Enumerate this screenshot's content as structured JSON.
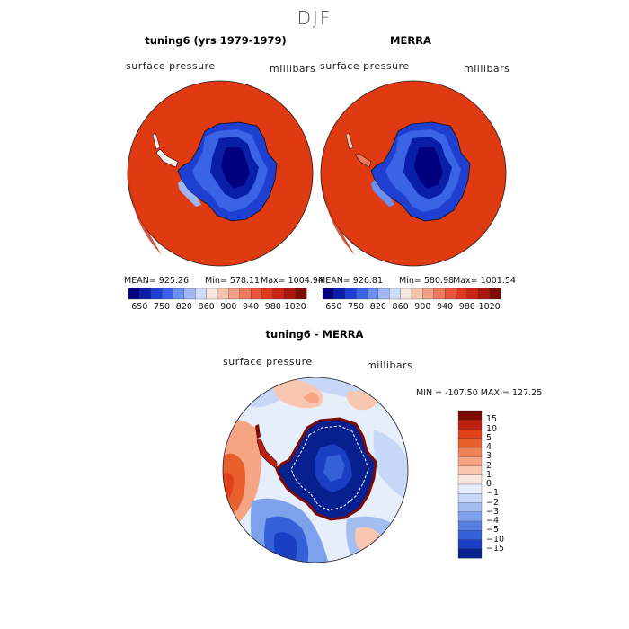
{
  "season": "DJF",
  "panels": [
    {
      "title": "tuning6 (yrs 1979-1979)",
      "variable": "surface pressure",
      "units": "millibars",
      "stats": {
        "mean": "MEAN= 925.26",
        "min": "Min= 578.11",
        "max": "Max= 1004.94"
      }
    },
    {
      "title": "MERRA",
      "variable": "surface pressure",
      "units": "millibars",
      "stats": {
        "mean": "MEAN= 926.81",
        "min": "Min= 580.98",
        "max": "Max= 1001.54"
      }
    }
  ],
  "pressure_colorbar": {
    "tick_labels": [
      "650",
      "750",
      "820",
      "860",
      "900",
      "940",
      "980",
      "1020"
    ],
    "colors": [
      "#00007f",
      "#0a1fa8",
      "#1f3fd0",
      "#3a63e6",
      "#6a8fef",
      "#9fb8f4",
      "#cfdcf8",
      "#f7e6df",
      "#f6c4ae",
      "#f2a085",
      "#ee7a5c",
      "#e8563a",
      "#dd3a1f",
      "#c82612",
      "#a7170a",
      "#7e0a04"
    ]
  },
  "difference_panel": {
    "title": "tuning6 - MERRA",
    "variable": "surface pressure",
    "units": "millibars",
    "stats": "MIN = -107.50 MAX = 127.25"
  },
  "difference_colorbar": {
    "tick_labels": [
      "15",
      "10",
      "5",
      "4",
      "3",
      "2",
      "1",
      "0",
      "−1",
      "−2",
      "−3",
      "−4",
      "−5",
      "−10",
      "−15"
    ],
    "colors": [
      "#7e0a04",
      "#c02010",
      "#e0401c",
      "#e8602e",
      "#f08258",
      "#f5a583",
      "#f9c7b0",
      "#fae6dc",
      "#e6eefb",
      "#c6d7f8",
      "#a3bef3",
      "#7ea1ec",
      "#5880e2",
      "#3460d8",
      "#1a3fc2",
      "#06208f"
    ]
  }
}
